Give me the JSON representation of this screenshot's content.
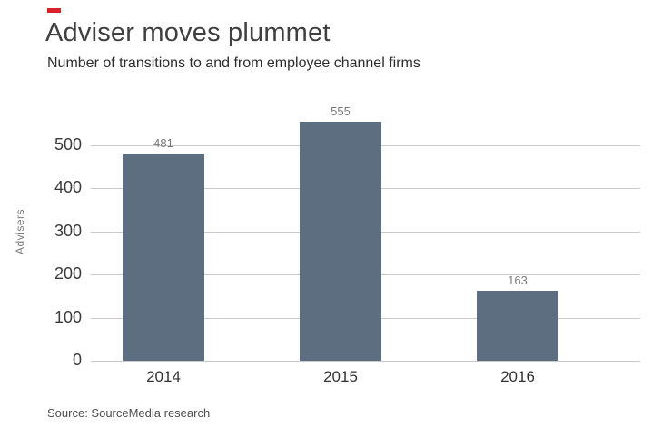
{
  "header": {
    "title": "Adviser moves plummet",
    "subtitle": "Number of transitions to and from employee channel firms"
  },
  "footer": {
    "source": "Source: SourceMedia research"
  },
  "colors": {
    "accent_red": "#d8232a",
    "bar": "#5c6e7f",
    "gridline": "#c9c9c9",
    "value_label": "#7a7a7a"
  },
  "chart_data": {
    "type": "bar",
    "categories": [
      "2014",
      "2015",
      "2016"
    ],
    "values": [
      481,
      555,
      163
    ],
    "title": "Adviser moves plummet",
    "subtitle": "Number of transitions to and from employee channel firms",
    "xlabel": "",
    "ylabel": "Advisers",
    "ylim": [
      0,
      500
    ],
    "yticks": [
      0,
      100,
      200,
      300,
      400,
      500
    ],
    "grid": true,
    "legend": "none",
    "bar_color": "#5c6e7f",
    "source": "Source: SourceMedia research"
  }
}
